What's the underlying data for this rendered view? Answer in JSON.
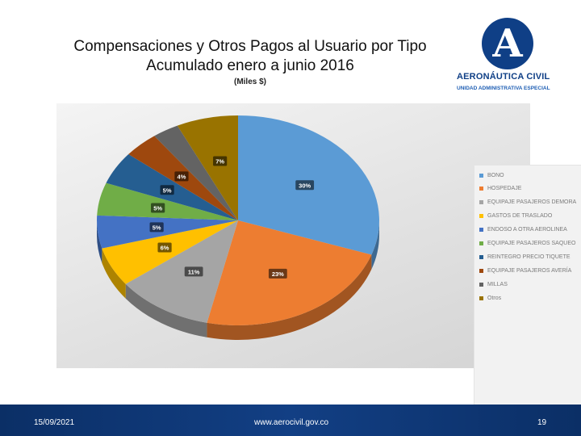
{
  "slide": {
    "title_line1": "Compensaciones y Otros Pagos al Usuario por Tipo",
    "title_line2": "Acumulado enero a junio 2016",
    "subtitle": "(Miles $)"
  },
  "logo": {
    "letter": "A",
    "name": "AERONÁUTICA CIVIL",
    "unit": "UNIDAD ADMINISTRATIVA ESPECIAL"
  },
  "chart_data": {
    "type": "pie",
    "categories": [
      "BONO",
      "HOSPEDAJE",
      "EQUIPAJE PASAJEROS DEMORA",
      "GASTOS DE TRASLADO",
      "ENDOSO A OTRA AEROLINEA",
      "EQUIPAJE PASAJEROS SAQUEO",
      "REINTEGRO PRECIO TIQUETE",
      "EQUIPAJE PASAJEROS AVERÍA",
      "MILLAS",
      "Otros"
    ],
    "values": [
      30,
      23,
      11,
      6,
      5,
      5,
      5,
      4,
      3,
      7
    ],
    "data_labels": [
      "30%",
      "23%",
      "11%",
      "6%",
      "5%",
      "5%",
      "5%",
      "4%",
      "",
      "7%"
    ],
    "colors": [
      "#5b9bd5",
      "#ed7d31",
      "#a5a5a5",
      "#ffc000",
      "#4472c4",
      "#70ad47",
      "#255e91",
      "#9e480e",
      "#636363",
      "#997300"
    ],
    "legend_position": "right",
    "style": "3d"
  },
  "footer": {
    "date": "15/09/2021",
    "url": "www.aerocivil.gov.co",
    "page": "19"
  }
}
